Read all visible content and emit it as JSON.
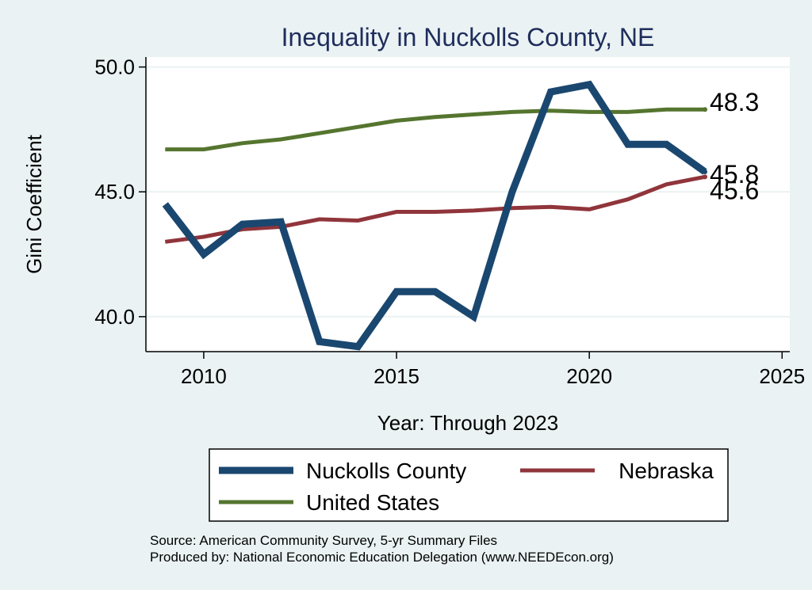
{
  "chart_data": {
    "type": "line",
    "title": "Inequality in Nuckolls County, NE",
    "xlabel": "Year: Through 2023",
    "ylabel": "Gini Coefficient",
    "xlim": [
      2008.5,
      2025.2
    ],
    "ylim": [
      38.6,
      50.4
    ],
    "xticks": [
      2010,
      2015,
      2020,
      2025
    ],
    "yticks": [
      40.0,
      45.0,
      50.0
    ],
    "xtick_labels": [
      "2010",
      "2015",
      "2020",
      "2025"
    ],
    "ytick_labels": [
      "40.0",
      "45.0",
      "50.0"
    ],
    "grid": true,
    "legend_position": "bottom",
    "series": [
      {
        "name": "Nuckolls County",
        "color": "#1a476f",
        "x": [
          2009,
          2010,
          2011,
          2012,
          2013,
          2014,
          2015,
          2016,
          2017,
          2018,
          2019,
          2020,
          2021,
          2022,
          2023
        ],
        "values": [
          44.5,
          42.5,
          43.7,
          43.8,
          39.0,
          38.8,
          41.0,
          41.0,
          40.0,
          45.0,
          49.0,
          49.3,
          46.9,
          46.9,
          45.8
        ],
        "end_label": "45.8"
      },
      {
        "name": "Nebraska",
        "color": "#90353b",
        "x": [
          2009,
          2010,
          2011,
          2012,
          2013,
          2014,
          2015,
          2016,
          2017,
          2018,
          2019,
          2020,
          2021,
          2022,
          2023
        ],
        "values": [
          43.0,
          43.2,
          43.5,
          43.6,
          43.9,
          43.85,
          44.2,
          44.2,
          44.25,
          44.35,
          44.4,
          44.3,
          44.7,
          45.3,
          45.6
        ],
        "end_label": "45.6"
      },
      {
        "name": "United States",
        "color": "#55752f",
        "x": [
          2009,
          2010,
          2011,
          2012,
          2013,
          2014,
          2015,
          2016,
          2017,
          2018,
          2019,
          2020,
          2021,
          2022,
          2023
        ],
        "values": [
          46.7,
          46.7,
          46.95,
          47.1,
          47.35,
          47.6,
          47.85,
          48.0,
          48.1,
          48.2,
          48.25,
          48.2,
          48.2,
          48.3,
          48.3
        ],
        "end_label": "48.3"
      }
    ],
    "notes": [
      "Source: American Community Survey, 5-yr Summary Files",
      "Produced by: National Economic Education Delegation (www.NEEDEcon.org)"
    ]
  }
}
